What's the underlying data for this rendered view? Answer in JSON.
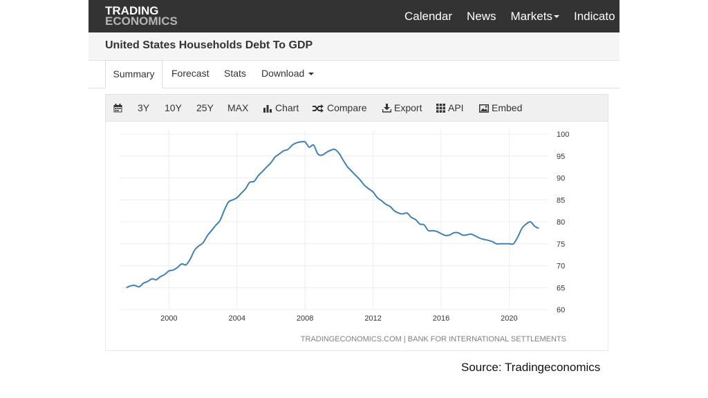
{
  "header": {
    "logo_line1": "TRADING",
    "logo_line2": "ECONOMICS",
    "nav": [
      "Calendar",
      "News",
      "Markets",
      "Indicato"
    ]
  },
  "page": {
    "title": "United States Households Debt To GDP"
  },
  "tabs": [
    "Summary",
    "Forecast",
    "Stats",
    "Download"
  ],
  "toolbar": {
    "ranges": [
      "3Y",
      "10Y",
      "25Y",
      "MAX"
    ],
    "chart": "Chart",
    "compare": "Compare",
    "export": "Export",
    "api": "API",
    "embed": "Embed"
  },
  "chart_data": {
    "type": "line",
    "title": "",
    "xlabel": "",
    "ylabel": "",
    "xlim": [
      1997.1,
      2022.3
    ],
    "ylim": [
      60,
      100
    ],
    "x_ticks": [
      2000,
      2004,
      2008,
      2012,
      2016,
      2020
    ],
    "y_ticks": [
      60,
      65,
      70,
      75,
      80,
      85,
      90,
      95,
      100
    ],
    "grid": true,
    "line_color": "#3c80b5",
    "source_text": "TRADINGECONOMICS.COM | BANK FOR INTERNATIONAL SETTLEMENTS",
    "series": [
      {
        "x": [
          1997.5,
          1997.75,
          1998.0,
          1998.25,
          1998.5,
          1998.75,
          1999.0,
          1999.25,
          1999.5,
          1999.75,
          2000.0,
          2000.25,
          2000.5,
          2000.75,
          2001.0,
          2001.25,
          2001.5,
          2001.75,
          2002.0,
          2002.25,
          2002.5,
          2002.75,
          2003.0,
          2003.25,
          2003.5,
          2003.75,
          2004.0,
          2004.25,
          2004.5,
          2004.75,
          2005.0,
          2005.25,
          2005.5,
          2005.75,
          2006.0,
          2006.25,
          2006.5,
          2006.75,
          2007.0,
          2007.25,
          2007.5,
          2007.75,
          2008.0,
          2008.25,
          2008.5,
          2008.75,
          2009.0,
          2009.25,
          2009.5,
          2009.75,
          2010.0,
          2010.25,
          2010.5,
          2010.75,
          2011.0,
          2011.25,
          2011.5,
          2011.75,
          2012.0,
          2012.25,
          2012.5,
          2012.75,
          2013.0,
          2013.25,
          2013.5,
          2013.75,
          2014.0,
          2014.25,
          2014.5,
          2014.75,
          2015.0,
          2015.25,
          2015.5,
          2015.75,
          2016.0,
          2016.25,
          2016.5,
          2016.75,
          2017.0,
          2017.25,
          2017.5,
          2017.75,
          2018.0,
          2018.25,
          2018.5,
          2018.75,
          2019.0,
          2019.25,
          2019.5,
          2019.75,
          2020.0,
          2020.25,
          2020.5,
          2020.75,
          2021.0,
          2021.25,
          2021.5,
          2021.75
        ],
        "values": [
          65.0,
          65.4,
          65.5,
          65.2,
          66.0,
          66.4,
          67.0,
          66.8,
          67.5,
          68.0,
          68.8,
          69.0,
          69.6,
          70.4,
          70.2,
          71.5,
          73.5,
          74.5,
          75.2,
          76.8,
          78.0,
          79.2,
          80.3,
          82.6,
          84.5,
          85.0,
          85.5,
          86.5,
          87.5,
          89.0,
          89.2,
          90.5,
          91.5,
          92.5,
          93.5,
          94.8,
          95.5,
          96.2,
          96.5,
          97.5,
          98.0,
          98.2,
          98.2,
          97.0,
          97.5,
          95.5,
          95.2,
          95.8,
          96.3,
          96.5,
          95.6,
          94.0,
          92.5,
          91.5,
          90.5,
          89.5,
          88.3,
          87.5,
          86.8,
          85.5,
          84.8,
          84.0,
          83.5,
          82.5,
          82.0,
          81.8,
          82.0,
          81.0,
          80.5,
          79.5,
          79.3,
          78.0,
          78.0,
          77.8,
          77.3,
          76.9,
          77.0,
          77.5,
          77.5,
          77.0,
          77.0,
          77.2,
          76.8,
          76.3,
          76.0,
          75.8,
          75.5,
          75.0,
          75.0,
          75.0,
          75.0,
          75.0,
          76.5,
          78.5,
          79.5,
          80.0,
          79.0,
          78.5
        ]
      }
    ]
  },
  "caption": "Source: Tradingeconomics"
}
